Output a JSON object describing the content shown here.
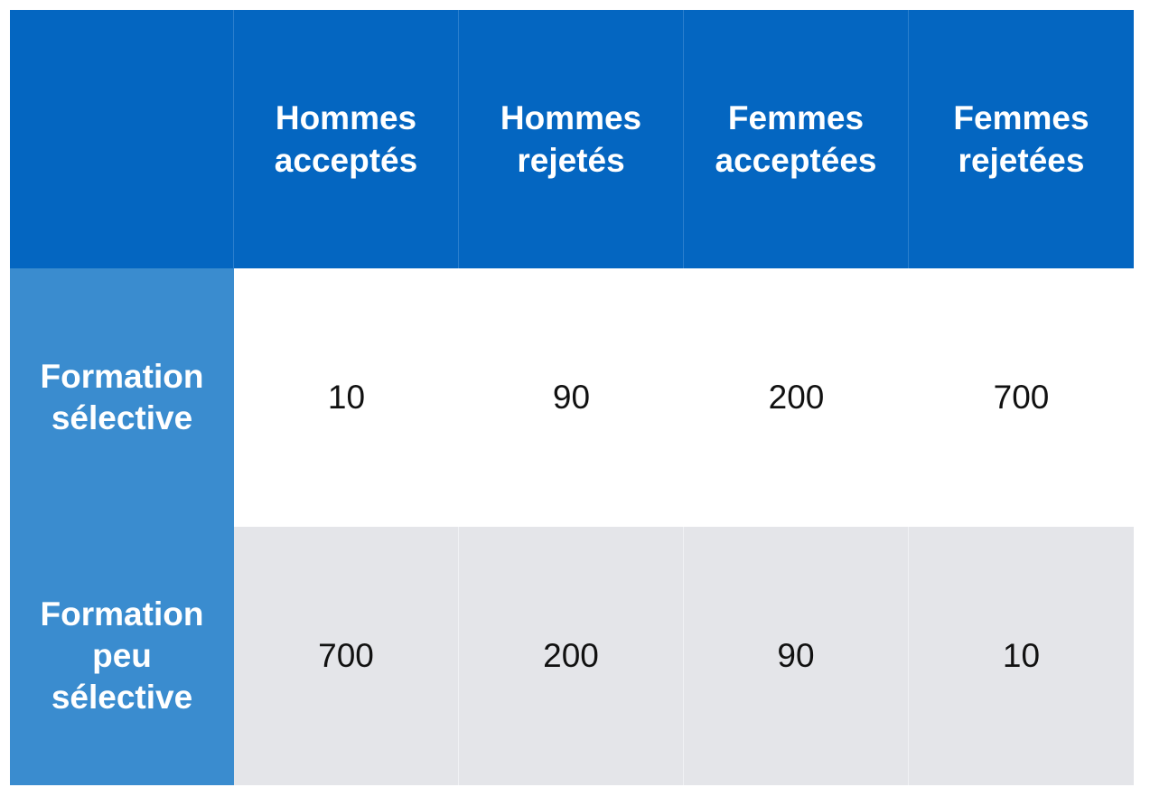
{
  "chart_data": {
    "type": "table",
    "columns": [
      "",
      "Hommes\nacceptés",
      "Hommes\nrejetés",
      "Femmes\nacceptées",
      "Femmes\nrejetées"
    ],
    "rows": [
      {
        "label": "Formation\nsélective",
        "values": [
          "10",
          "90",
          "200",
          "700"
        ]
      },
      {
        "label": "Formation\npeu\nsélective",
        "values": [
          "700",
          "200",
          "90",
          "10"
        ]
      }
    ]
  },
  "colors": {
    "header_bg": "#0466c1",
    "row_header_bg": "#3a8ccf",
    "row_alt_bg": "#e4e5e9",
    "header_text": "#ffffff"
  }
}
